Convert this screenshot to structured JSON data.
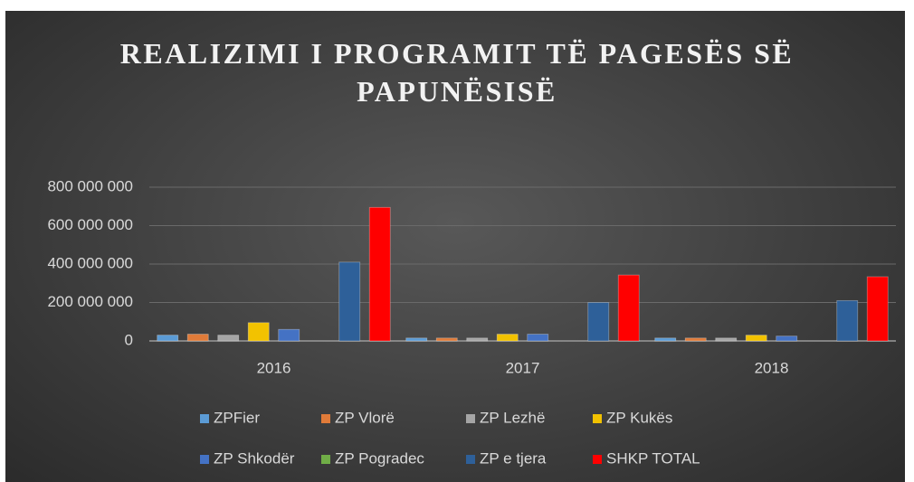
{
  "chart_data": {
    "type": "bar",
    "title": "REALIZIMI I PROGRAMIT TË PAGESËS SË PAPUNËSISË",
    "categories": [
      "2016",
      "2017",
      "2018"
    ],
    "series": [
      {
        "name": "ZPFier",
        "color": "#5b9bd5",
        "values": [
          30000000,
          15000000,
          15000000
        ]
      },
      {
        "name": "ZP Vlorë",
        "color": "#e07b39",
        "values": [
          35000000,
          15000000,
          15000000
        ]
      },
      {
        "name": "ZP Lezhë",
        "color": "#a5a5a5",
        "values": [
          30000000,
          15000000,
          15000000
        ]
      },
      {
        "name": "ZP Kukës",
        "color": "#f2c200",
        "values": [
          95000000,
          35000000,
          30000000
        ]
      },
      {
        "name": "ZP Shkodër",
        "color": "#4472c4",
        "values": [
          60000000,
          35000000,
          25000000
        ]
      },
      {
        "name": "ZP Pogradec",
        "color": "#70ad47",
        "values": [
          0,
          0,
          0
        ]
      },
      {
        "name": "ZP e tjera",
        "color": "#2e6099",
        "values": [
          410000000,
          200000000,
          210000000
        ]
      },
      {
        "name": "SHKP TOTAL",
        "color": "#ff0000",
        "values": [
          695000000,
          343000000,
          334000000
        ]
      }
    ],
    "ylim": [
      0,
      800000000
    ],
    "yticks": [
      0,
      {
        "value": 200000000,
        "label": "200 000 000"
      },
      {
        "value": 400000000,
        "label": "400 000 000"
      },
      {
        "value": 600000000,
        "label": "600 000 000"
      },
      {
        "value": 800000000,
        "label": "800 000 000"
      }
    ],
    "grid": true,
    "legend": "bottom"
  }
}
